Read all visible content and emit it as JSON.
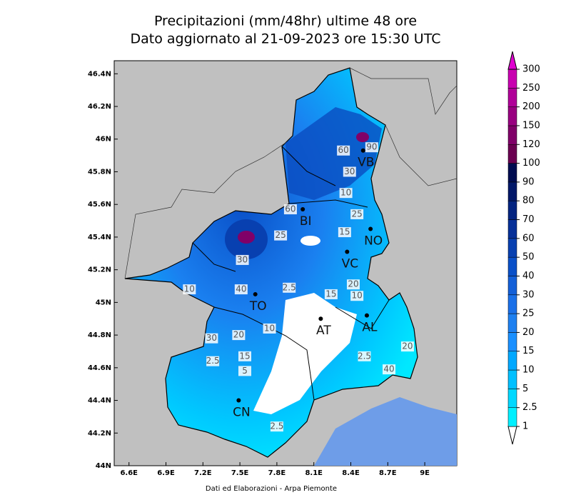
{
  "title": [
    "Precipitazioni (mm/48hr) ultime 48 ore",
    "Dato aggiornato al 21-09-2023 ore 15:30 UTC"
  ],
  "map": {
    "xlim": [
      6.48,
      9.26
    ],
    "ylim": [
      44,
      46.48
    ],
    "xticks": [
      {
        "value": 6.6,
        "label": "6.6E"
      },
      {
        "value": 6.9,
        "label": "6.9E"
      },
      {
        "value": 7.2,
        "label": "7.2E"
      },
      {
        "value": 7.5,
        "label": "7.5E"
      },
      {
        "value": 7.8,
        "label": "7.8E"
      },
      {
        "value": 8.1,
        "label": "8.1E"
      },
      {
        "value": 8.4,
        "label": "8.4E"
      },
      {
        "value": 8.7,
        "label": "8.7E"
      },
      {
        "value": 9,
        "label": "9E"
      }
    ],
    "yticks": [
      {
        "value": 44,
        "label": "44N"
      },
      {
        "value": 44.2,
        "label": "44.2N"
      },
      {
        "value": 44.4,
        "label": "44.4N"
      },
      {
        "value": 44.6,
        "label": "44.6N"
      },
      {
        "value": 44.8,
        "label": "44.8N"
      },
      {
        "value": 45,
        "label": "45N"
      },
      {
        "value": 45.2,
        "label": "45.2N"
      },
      {
        "value": 45.4,
        "label": "45.4N"
      },
      {
        "value": 45.6,
        "label": "45.6N"
      },
      {
        "value": 45.8,
        "label": "45.8N"
      },
      {
        "value": 46,
        "label": "46N"
      },
      {
        "value": 46.2,
        "label": "46.2N"
      },
      {
        "value": 46.4,
        "label": "46.4N"
      }
    ],
    "cities": [
      {
        "label": "TO",
        "lon": 7.625,
        "lat": 45.05
      },
      {
        "label": "AT",
        "lon": 8.156,
        "lat": 44.9
      },
      {
        "label": "AL",
        "lon": 8.53,
        "lat": 44.92
      },
      {
        "label": "CN",
        "lon": 7.49,
        "lat": 44.4
      },
      {
        "label": "BI",
        "lon": 8.01,
        "lat": 45.57
      },
      {
        "label": "VC",
        "lon": 8.37,
        "lat": 45.31
      },
      {
        "label": "NO",
        "lon": 8.56,
        "lat": 45.45
      },
      {
        "label": "VB",
        "lon": 8.5,
        "lat": 45.93
      }
    ],
    "contour_labels": [
      {
        "value": 60,
        "lon": 8.34,
        "lat": 45.93
      },
      {
        "value": 90,
        "lon": 8.57,
        "lat": 45.95
      },
      {
        "value": 30,
        "lon": 8.39,
        "lat": 45.8
      },
      {
        "value": 10,
        "lon": 8.36,
        "lat": 45.67
      },
      {
        "value": 60,
        "lon": 7.91,
        "lat": 45.57
      },
      {
        "value": 25,
        "lon": 8.45,
        "lat": 45.54
      },
      {
        "value": 15,
        "lon": 8.35,
        "lat": 45.43
      },
      {
        "value": 25,
        "lon": 7.83,
        "lat": 45.41
      },
      {
        "value": 20,
        "lon": 8.42,
        "lat": 45.11
      },
      {
        "value": 10,
        "lon": 8.45,
        "lat": 45.04
      },
      {
        "value": 15,
        "lon": 8.24,
        "lat": 45.05
      },
      {
        "value": 2.5,
        "lon": 7.9,
        "lat": 45.09
      },
      {
        "value": 10,
        "lon": 7.09,
        "lat": 45.08
      },
      {
        "value": 30,
        "lon": 7.52,
        "lat": 45.26
      },
      {
        "value": 40,
        "lon": 7.51,
        "lat": 45.08
      },
      {
        "value": 20,
        "lon": 7.49,
        "lat": 44.8
      },
      {
        "value": 10,
        "lon": 7.74,
        "lat": 44.84
      },
      {
        "value": 30,
        "lon": 7.27,
        "lat": 44.78
      },
      {
        "value": 2.5,
        "lon": 7.28,
        "lat": 44.64
      },
      {
        "value": 15,
        "lon": 7.54,
        "lat": 44.67
      },
      {
        "value": 5,
        "lon": 7.54,
        "lat": 44.58
      },
      {
        "value": 2.5,
        "lon": 8.51,
        "lat": 44.67
      },
      {
        "value": 40,
        "lon": 8.71,
        "lat": 44.59
      },
      {
        "value": 20,
        "lon": 8.86,
        "lat": 44.73
      },
      {
        "value": 2.5,
        "lon": 7.8,
        "lat": 44.24
      }
    ]
  },
  "colorbar": {
    "levels": [
      1,
      2.5,
      5,
      10,
      15,
      20,
      25,
      30,
      40,
      50,
      60,
      70,
      80,
      90,
      100,
      120,
      150,
      200,
      250,
      300
    ],
    "colors": [
      "#ffffff",
      "#00f0ff",
      "#00d8ff",
      "#00c0ff",
      "#00a8ff",
      "#1a90ff",
      "#1e80f0",
      "#1a70e8",
      "#1460d8",
      "#0a50c8",
      "#0840b0",
      "#063098",
      "#042480",
      "#021868",
      "#000c50",
      "#6a0050",
      "#800068",
      "#990080",
      "#b00098",
      "#c800b0",
      "#e000d0"
    ]
  },
  "footer": "Dati ed Elaborazioni - Arpa Piemonte"
}
